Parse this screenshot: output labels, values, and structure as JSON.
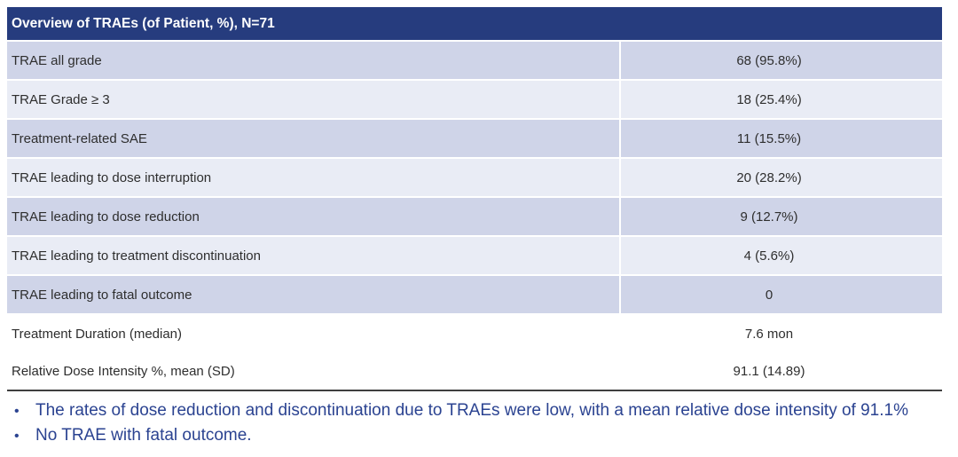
{
  "chart_data": {
    "type": "table",
    "title": "Overview of TRAEs (of Patient, %), N=71",
    "n_patients": 71,
    "rows": [
      {
        "label": "TRAE all grade",
        "display": "68 (95.8%)",
        "count": 68,
        "percent": 95.8
      },
      {
        "label": "TRAE Grade ≥ 3",
        "display": "18 (25.4%)",
        "count": 18,
        "percent": 25.4
      },
      {
        "label": "Treatment-related SAE",
        "display": "11 (15.5%)",
        "count": 11,
        "percent": 15.5
      },
      {
        "label": "TRAE leading to dose interruption",
        "display": "20 (28.2%)",
        "count": 20,
        "percent": 28.2
      },
      {
        "label": "TRAE leading to dose reduction",
        "display": "9 (12.7%)",
        "count": 9,
        "percent": 12.7
      },
      {
        "label": "TRAE leading to treatment discontinuation",
        "display": "4 (5.6%)",
        "count": 4,
        "percent": 5.6
      },
      {
        "label": "TRAE leading to fatal outcome",
        "display": "0",
        "count": 0
      },
      {
        "label": "Treatment Duration (median)",
        "display": "7.6 mon"
      },
      {
        "label": "Relative Dose Intensity %, mean (SD)",
        "display": "91.1 (14.89)",
        "mean": 91.1,
        "sd": 14.89
      }
    ]
  },
  "bullets": [
    "The rates of dose reduction and discontinuation due to TRAEs were low, with a mean relative dose intensity of 91.1%",
    "No TRAE with fatal outcome."
  ],
  "bullet_glyph": "•",
  "colors": {
    "header_bg": "#263c7e",
    "header_text": "#ffffff",
    "row_dark": "#cfd4e8",
    "row_light": "#e9ecf5",
    "table_text": "#2e2e2e",
    "bullet_text": "#2b4391",
    "rule": "#3f3f3f"
  }
}
